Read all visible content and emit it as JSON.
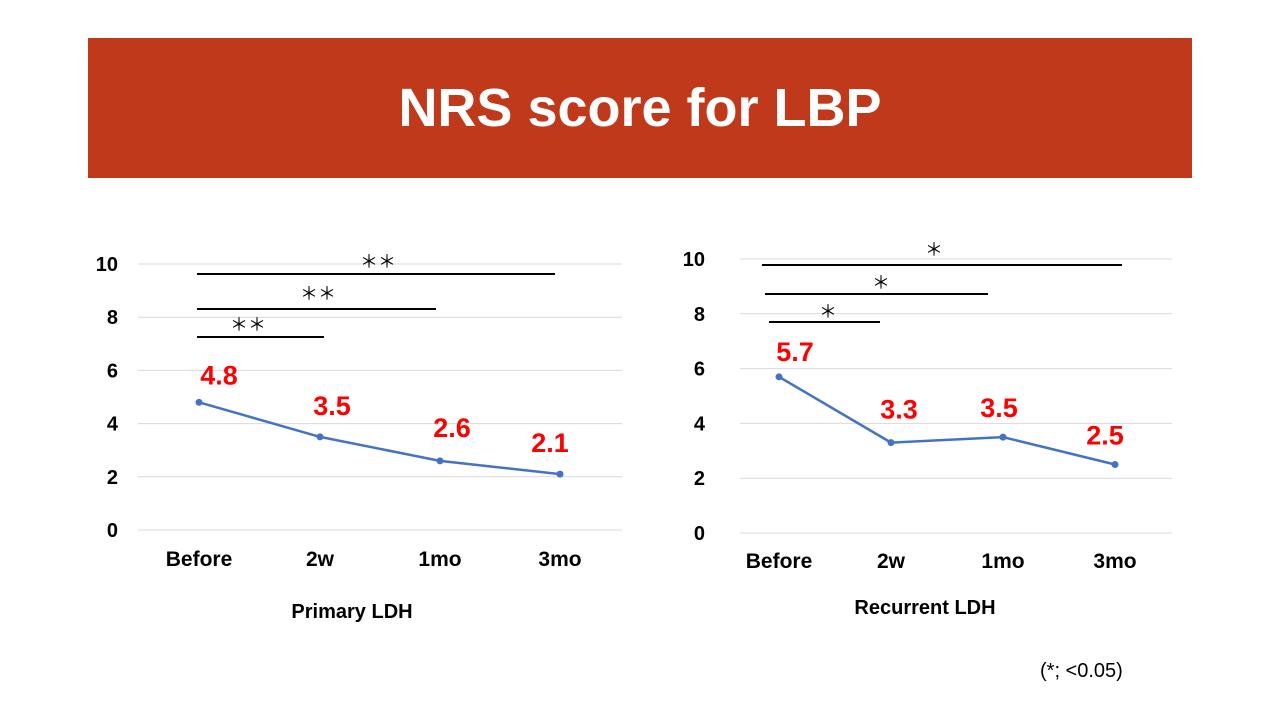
{
  "title": "NRS score for LBP",
  "footnote": "(*; <0.05)",
  "colors": {
    "banner": "#c0391b",
    "line": "#4472c4",
    "labels": "#ff0000",
    "grid": "#d9d9d9"
  },
  "chart_data": [
    {
      "type": "line",
      "xlabel": "Primary LDH",
      "ylabel": "",
      "ylim": [
        0,
        10
      ],
      "yticks": [
        "0",
        "2",
        "4",
        "6",
        "8",
        "10"
      ],
      "categories": [
        "Before",
        "2w",
        "1mo",
        "3mo"
      ],
      "series": [
        {
          "values": [
            4.8,
            3.5,
            2.6,
            2.1
          ]
        }
      ],
      "data_labels": [
        "4.8",
        "3.5",
        "2.6",
        "2.1"
      ],
      "grid": true,
      "significance": [
        {
          "from": "Before",
          "to": "2w",
          "label": "＊＊"
        },
        {
          "from": "Before",
          "to": "1mo",
          "label": "＊＊"
        },
        {
          "from": "Before",
          "to": "3mo",
          "label": "＊＊"
        }
      ]
    },
    {
      "type": "line",
      "xlabel": "Recurrent LDH",
      "ylabel": "",
      "ylim": [
        0,
        10
      ],
      "yticks": [
        "0",
        "2",
        "4",
        "6",
        "8",
        "10"
      ],
      "categories": [
        "Before",
        "2w",
        "1mo",
        "3mo"
      ],
      "series": [
        {
          "values": [
            5.7,
            3.3,
            3.5,
            2.5
          ]
        }
      ],
      "data_labels": [
        "5.7",
        "3.3",
        "3.5",
        "2.5"
      ],
      "grid": true,
      "significance": [
        {
          "from": "Before",
          "to": "2w",
          "label": "＊"
        },
        {
          "from": "Before",
          "to": "1mo",
          "label": "＊"
        },
        {
          "from": "Before",
          "to": "3mo",
          "label": "＊"
        }
      ]
    }
  ]
}
